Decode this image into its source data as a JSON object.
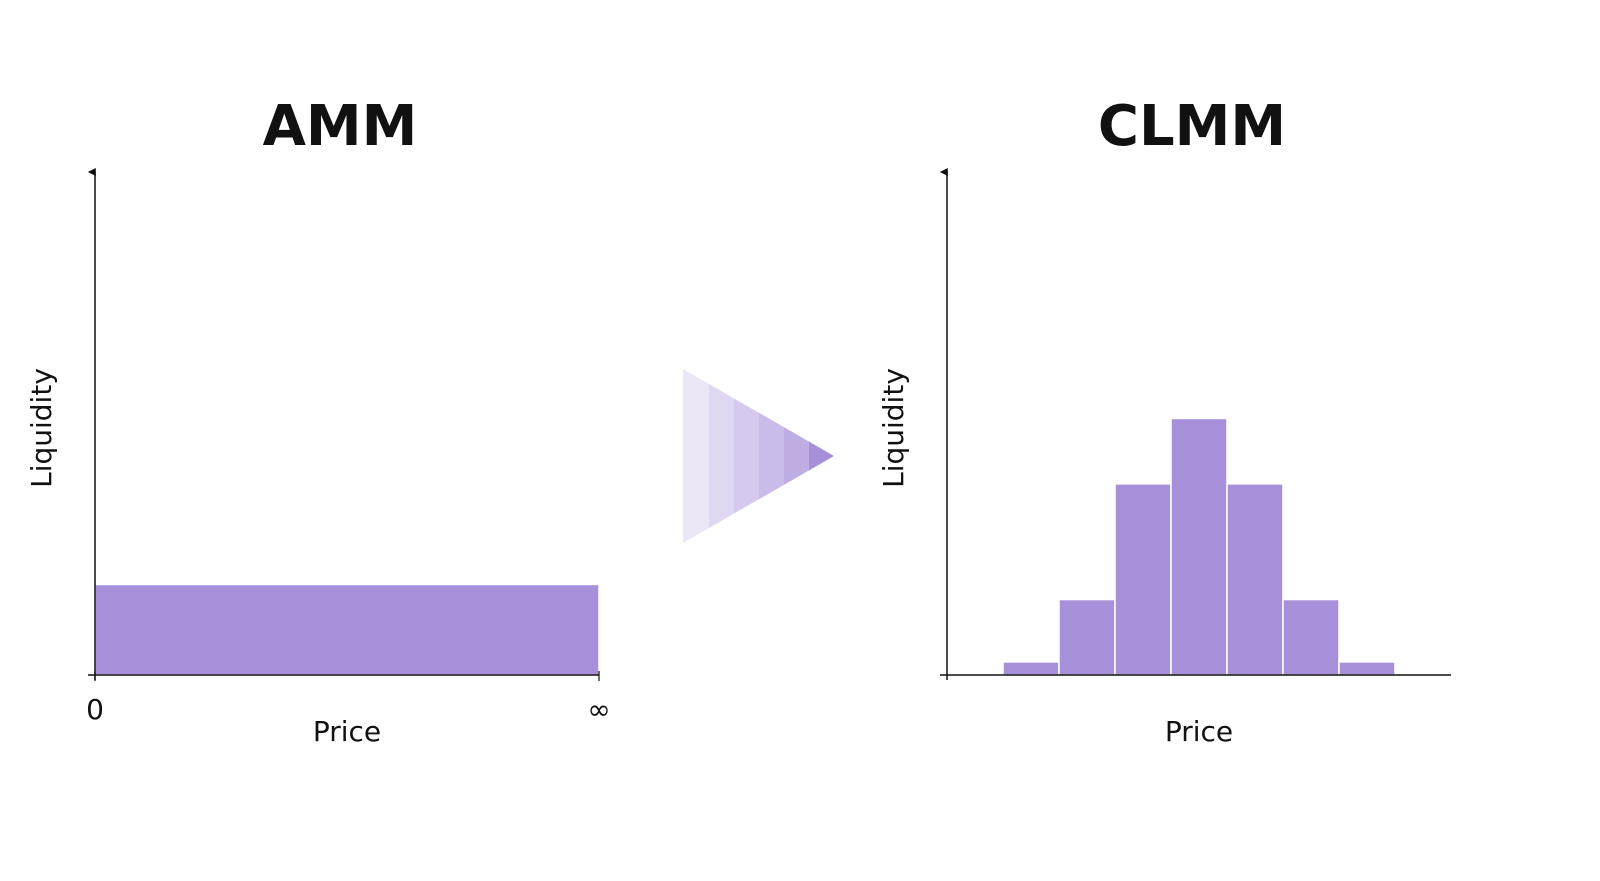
{
  "chart_data": [
    {
      "type": "histogram",
      "title": "AMM",
      "x_label": "Price",
      "y_label": "Liquidity",
      "bins": [
        0,
        1
      ],
      "values": [
        18
      ],
      "color": "#a590d9",
      "xlim": [
        0,
        1
      ],
      "xticks": [
        {
          "value": 0,
          "label": "0"
        },
        {
          "value": 1,
          "label": "∞"
        }
      ],
      "ylim": [
        0,
        100
      ]
    },
    {
      "type": "histogram",
      "title": "CLMM",
      "x_label": "Price",
      "y_label": "Liquidity",
      "bins": [
        1,
        2,
        3,
        4,
        5,
        6,
        7,
        8
      ],
      "values": [
        2.6,
        15,
        38,
        51,
        38,
        15,
        2.6
      ],
      "color": "#a590d9",
      "xlim": [
        0,
        9
      ],
      "ylim": [
        0,
        100
      ]
    }
  ]
}
